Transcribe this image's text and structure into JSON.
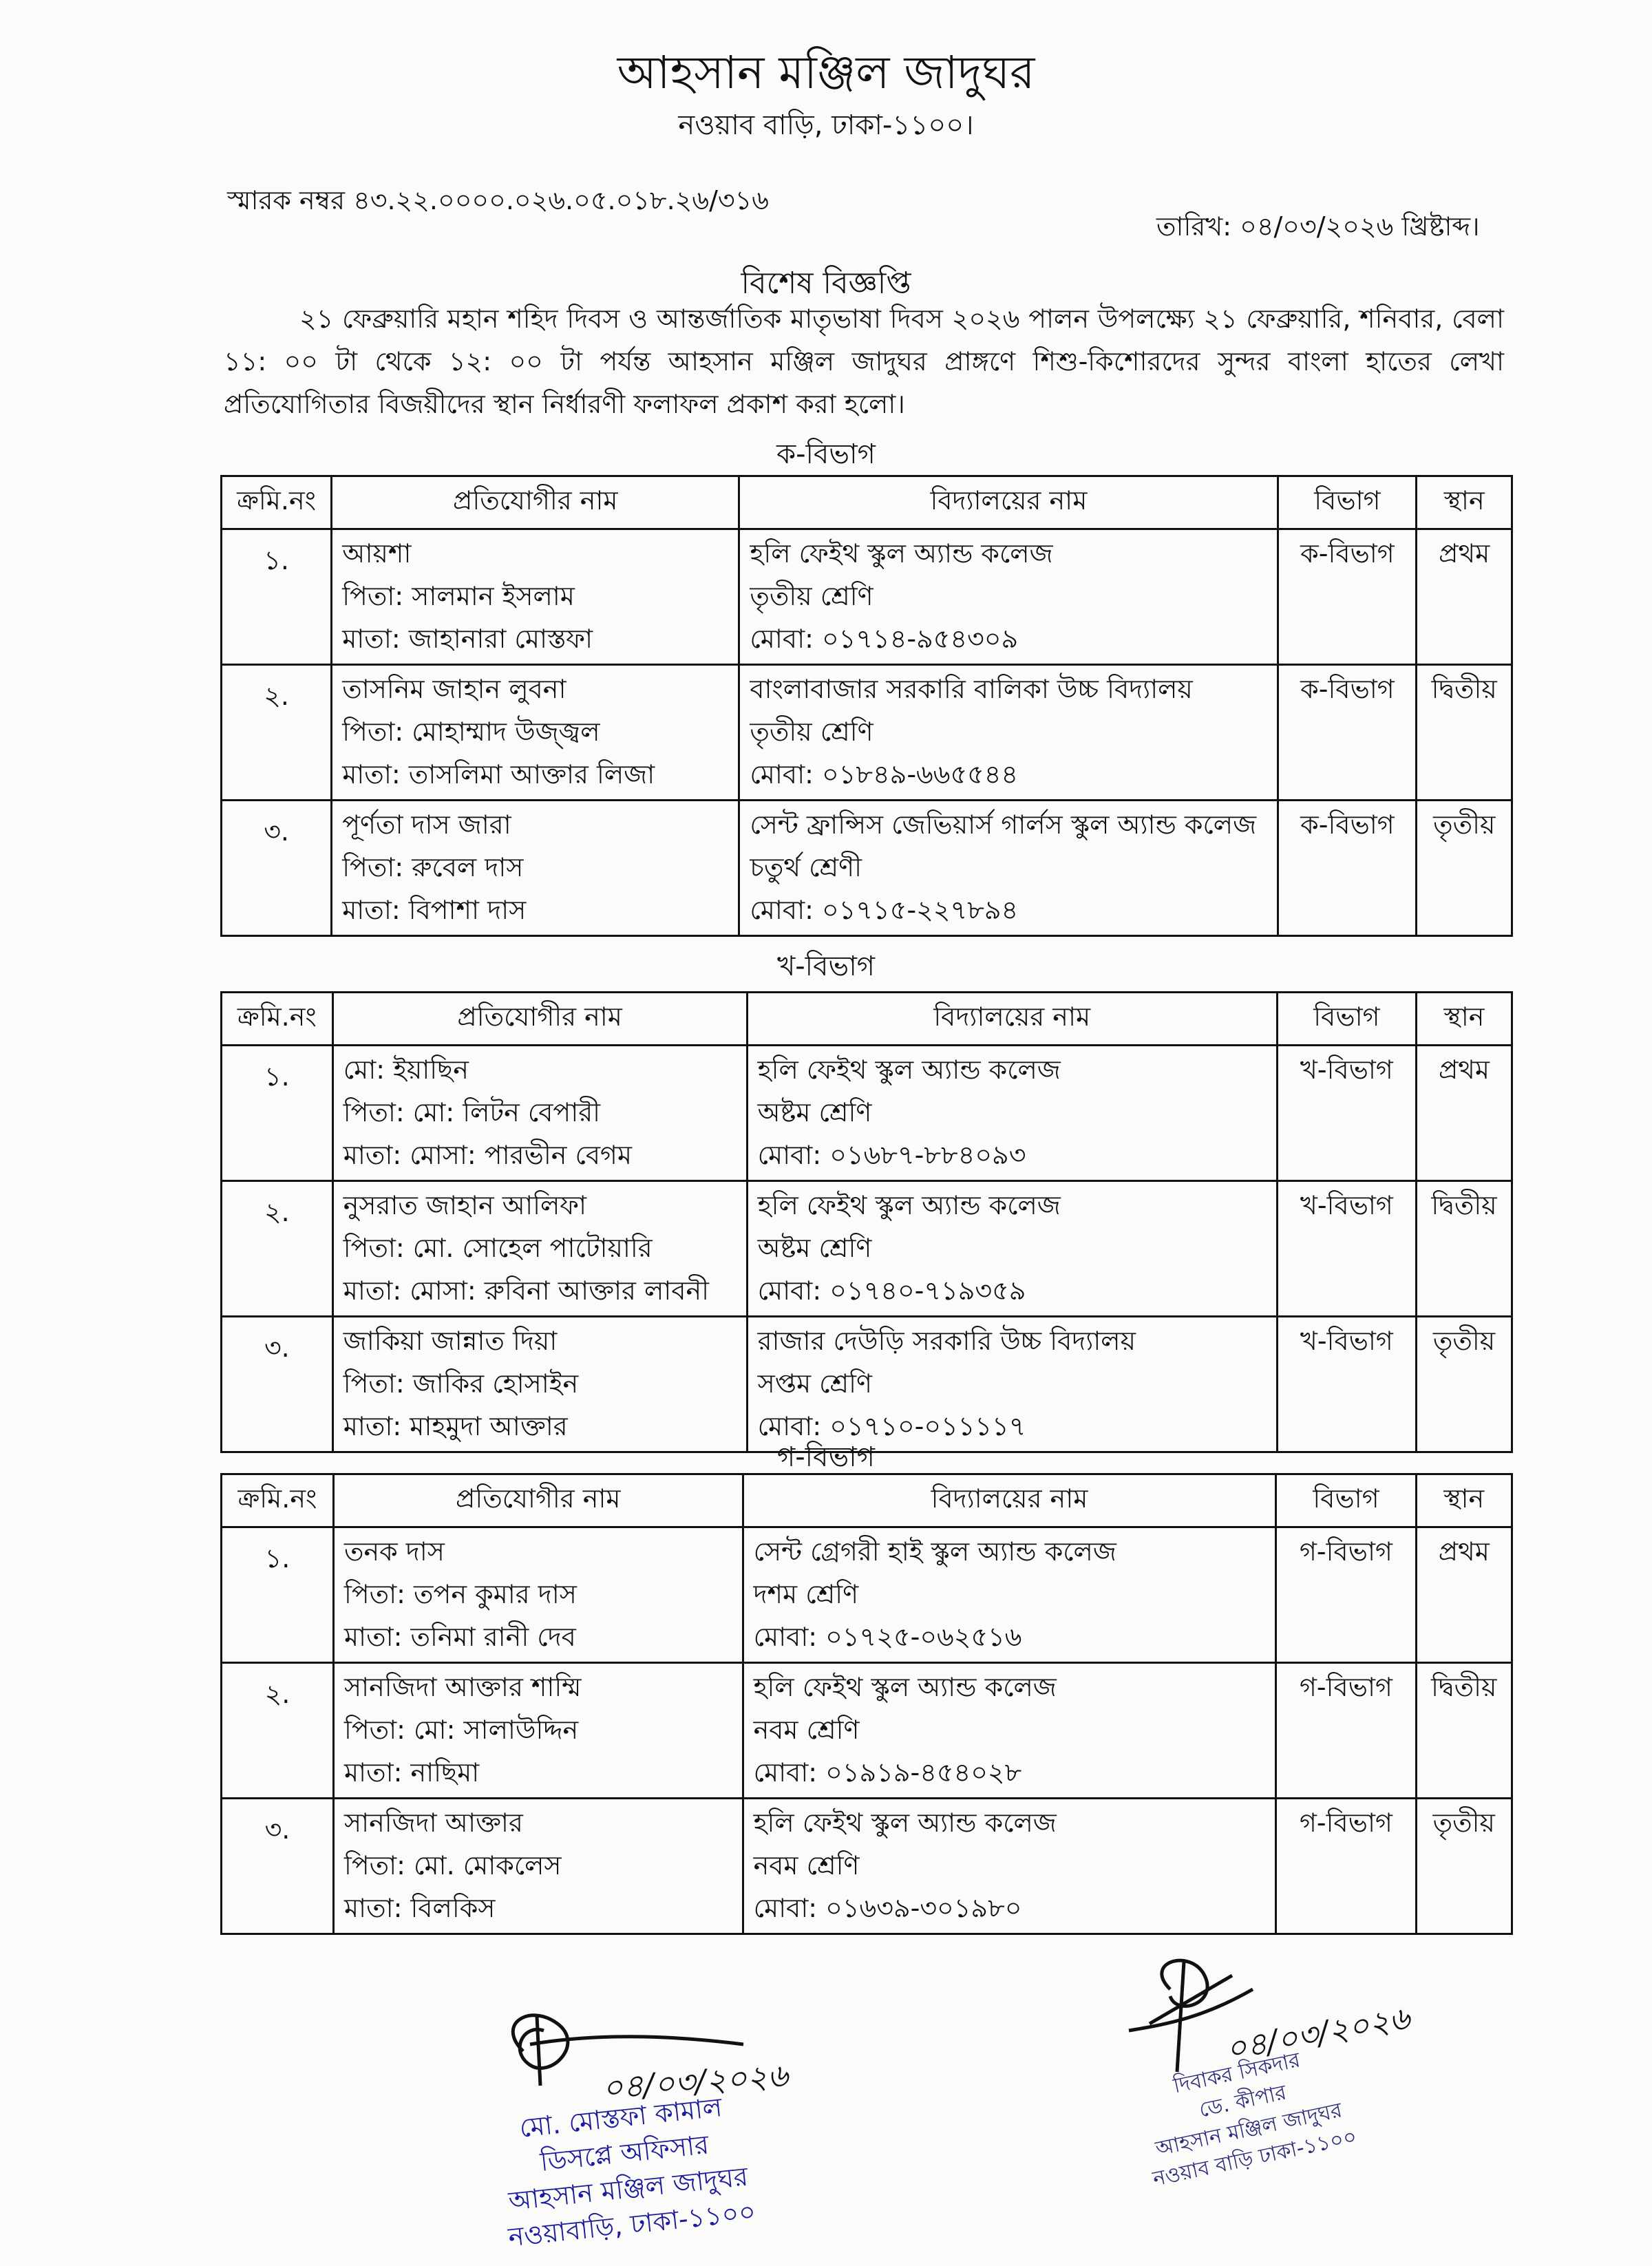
{
  "header": {
    "org_title": "আহসান মঞ্জিল জাদুঘর",
    "org_address": "নওয়াব বাড়ি, ঢাকা-১১০০।",
    "memo": "স্মারক নম্বর ৪৩.২২.০০০০.০২৬.০৫.০১৮.২৬/৩১৬",
    "date": "তারিখ:  ০৪/০৩/২০২৬ খ্রিষ্টাব্দ।"
  },
  "notice": {
    "title": "বিশেষ বিজ্ঞপ্তি",
    "body": "২১ ফেব্রুয়ারি মহান শহিদ দিবস ও আন্তর্জাতিক মাতৃভাষা দিবস ২০২৬ পালন উপলক্ষ্যে ২১ ফেব্রুয়ারি, শনিবার, বেলা ১১: ০০ টা থেকে ১২: ০০ টা পর্যন্ত আহসান মঞ্জিল জাদুঘর প্রাঙ্গণে শিশু-কিশোরদের সুন্দর বাংলা হাতের লেখা প্রতিযোগিতার বিজয়ীদের স্থান নির্ধারণী ফলাফল প্রকাশ করা হলো।"
  },
  "columns": [
    "ক্রমি.নং",
    "প্রতিযোগীর নাম",
    "বিদ্যালয়ের নাম",
    "বিভাগ",
    "স্থান"
  ],
  "sections": [
    {
      "title": "ক-বিভাগ",
      "rows": [
        {
          "sl": "১.",
          "name": "আয়শা",
          "father": "পিতা: সালমান ইসলাম",
          "mother": "মাতা: জাহানারা মোস্তফা",
          "school": "হলি ফেইথ স্কুল অ্যান্ড কলেজ",
          "class": "তৃতীয় শ্রেণি",
          "mobile": "মোবা: ০১৭১৪-৯৫৪৩০৯",
          "division": "ক-বিভাগ",
          "place": "প্রথম"
        },
        {
          "sl": "২.",
          "name": "তাসনিম জাহান লুবনা",
          "father": "পিতা: মোহাম্মাদ উজ্জ্বল",
          "mother": "মাতা: তাসলিমা আক্তার লিজা",
          "school": "বাংলাবাজার সরকারি বালিকা উচ্চ বিদ্যালয়",
          "class": "তৃতীয় শ্রেণি",
          "mobile": "মোবা: ০১৮৪৯-৬৬৫৫৪৪",
          "division": "ক-বিভাগ",
          "place": "দ্বিতীয়"
        },
        {
          "sl": "৩.",
          "name": "পূর্ণতা দাস জারা",
          "father": "পিতা: রুবেল দাস",
          "mother": "মাতা: বিপাশা দাস",
          "school": "সেন্ট ফ্রান্সিস জেভিয়ার্স গার্লস স্কুল অ্যান্ড কলেজ",
          "class": "চতুর্থ শ্রেণী",
          "mobile": "মোবা: ০১৭১৫-২২৭৮৯৪",
          "division": "ক-বিভাগ",
          "place": "তৃতীয়"
        }
      ]
    },
    {
      "title": "খ-বিভাগ",
      "rows": [
        {
          "sl": "১.",
          "name": "মো: ইয়াছিন",
          "father": "পিতা:  মো: লিটন বেপারী",
          "mother": "মাতা: মোসা: পারভীন বেগম",
          "school": "হলি ফেইথ স্কুল অ্যান্ড কলেজ",
          "class": "অষ্টম শ্রেণি",
          "mobile": "মোবা: ০১৬৮৭-৮৮৪০৯৩",
          "division": "খ-বিভাগ",
          "place": "প্রথম"
        },
        {
          "sl": "২.",
          "name": "নুসরাত জাহান আলিফা",
          "father": "পিতা: মো. সোহেল পাটোয়ারি",
          "mother": "মাতা: মোসা: রুবিনা আক্তার লাবনী",
          "school": "হলি ফেইথ স্কুল অ্যান্ড কলেজ",
          "class": "অষ্টম শ্রেণি",
          "mobile": "মোবা: ০১৭৪০-৭১৯৩৫৯",
          "division": "খ-বিভাগ",
          "place": "দ্বিতীয়"
        },
        {
          "sl": "৩.",
          "name": "জাকিয়া জান্নাত দিয়া",
          "father": "পিতা: জাকির হোসাইন",
          "mother": "মাতা: মাহমুদা আক্তার",
          "school": "রাজার দেউড়ি সরকারি উচ্চ বিদ্যালয়",
          "class": "সপ্তম শ্রেণি",
          "mobile": "মোবা: ০১৭১০-০১১১১৭",
          "division": "খ-বিভাগ",
          "place": "তৃতীয়"
        }
      ]
    },
    {
      "title": "গ-বিভাগ",
      "rows": [
        {
          "sl": "১.",
          "name": "তনক দাস",
          "father": "পিতা: তপন কুমার দাস",
          "mother": "মাতা: তনিমা রানী দেব",
          "school": "সেন্ট গ্রেগরী  হাই স্কুল অ্যান্ড কলেজ",
          "class": "দশম শ্রেণি",
          "mobile": "মোবা: ০১৭২৫-০৬২৫১৬",
          "division": "গ-বিভাগ",
          "place": "প্রথম"
        },
        {
          "sl": "২.",
          "name": "সানজিদা আক্তার শাম্মি",
          "father": "পিতা:  মো: সালাউদ্দিন",
          "mother": "মাতা: নাছিমা",
          "school": "হলি ফেইথ স্কুল অ্যান্ড কলেজ",
          "class": "নবম শ্রেণি",
          "mobile": "মোবা: ০১৯১৯-৪৫৪০২৮",
          "division": "গ-বিভাগ",
          "place": "দ্বিতীয়"
        },
        {
          "sl": "৩.",
          "name": "সানজিদা আক্তার",
          "father": "পিতা: মো. মোকলেস",
          "mother": "মাতা: বিলকিস",
          "school": "হলি ফেইথ স্কুল অ্যান্ড কলেজ",
          "class": "নবম শ্রেণি",
          "mobile": "মোবা: ০১৬৩৯-৩০১৯৮০",
          "division": "গ-বিভাগ",
          "place": "তৃতীয়"
        }
      ]
    }
  ],
  "signatures": {
    "left": {
      "date": "০৪/০৩/২০২৬",
      "stamp_lines": [
        "মো. মোস্তফা কামাল",
        "ডিসপ্লে অফিসার",
        "আহসান মঞ্জিল জাদুঘর",
        "নওয়াবাড়ি, ঢাকা-১১০০"
      ]
    },
    "right": {
      "date": "০৪/০৩/২০২৬",
      "stamp_lines": [
        "দিবাকর সিকদার",
        "ডে. কীপার",
        "আহসান মঞ্জিল জাদুঘর",
        "নওয়াব বাড়ি  ঢাকা-১১০০"
      ]
    },
    "ink_color": "#1a1a9c"
  }
}
